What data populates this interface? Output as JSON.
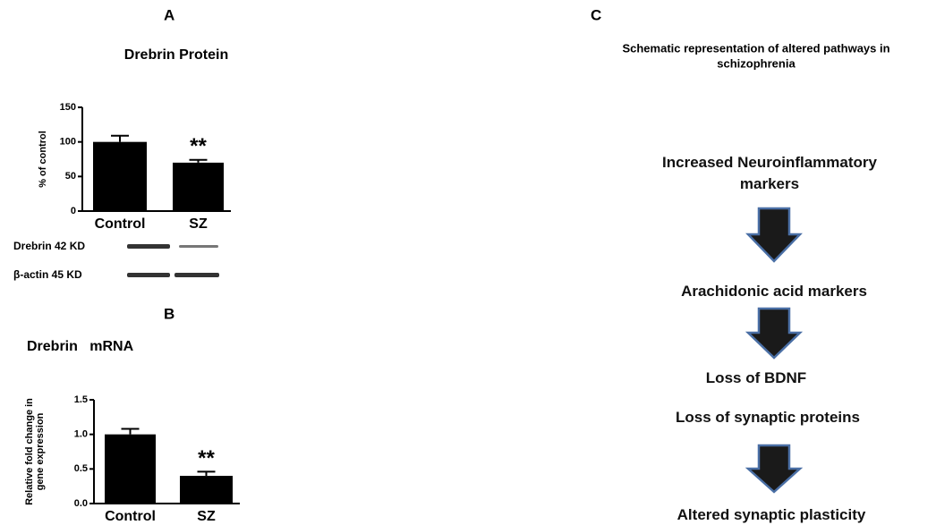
{
  "chart_data": [
    {
      "type": "bar",
      "panel": "A",
      "title": "Drebrin Protein",
      "ylabel": [
        "% of control"
      ],
      "categories": [
        "Control",
        "SZ"
      ],
      "values": [
        100,
        70
      ],
      "errors": [
        9,
        4
      ],
      "color": "#000000",
      "ylim": [
        0,
        150
      ],
      "yticks": [
        0,
        50,
        100,
        150
      ],
      "annotation": "**"
    },
    {
      "type": "bar",
      "panel": "B",
      "title": "Drebrin   mRNA",
      "ylabel": [
        "Relative fold change in",
        "gene expression"
      ],
      "categories": [
        "Control",
        "SZ"
      ],
      "values": [
        1.0,
        0.4
      ],
      "errors": [
        0.08,
        0.06
      ],
      "color": "#000000",
      "ylim": [
        0,
        1.5
      ],
      "yticks": [
        {
          "value": 0,
          "label": "0.0"
        },
        {
          "value": 0.5,
          "label": "0.5"
        },
        {
          "value": 1,
          "label": "1.0"
        },
        {
          "value": 1.5,
          "label": "1.5"
        }
      ],
      "annotation": "**"
    }
  ],
  "blot": {
    "rows": [
      "Drebrin  42 KD",
      "β-actin  45 KD"
    ]
  },
  "diagram": {
    "panel": "C",
    "title": [
      "Schematic representation of altered pathways in",
      "schizophrenia"
    ],
    "steps": [
      "Increased Neuroinflammatory markers",
      "Arachidonic acid markers",
      "Loss of BDNF",
      "Loss of synaptic proteins",
      "Altered synaptic plasticity"
    ]
  }
}
